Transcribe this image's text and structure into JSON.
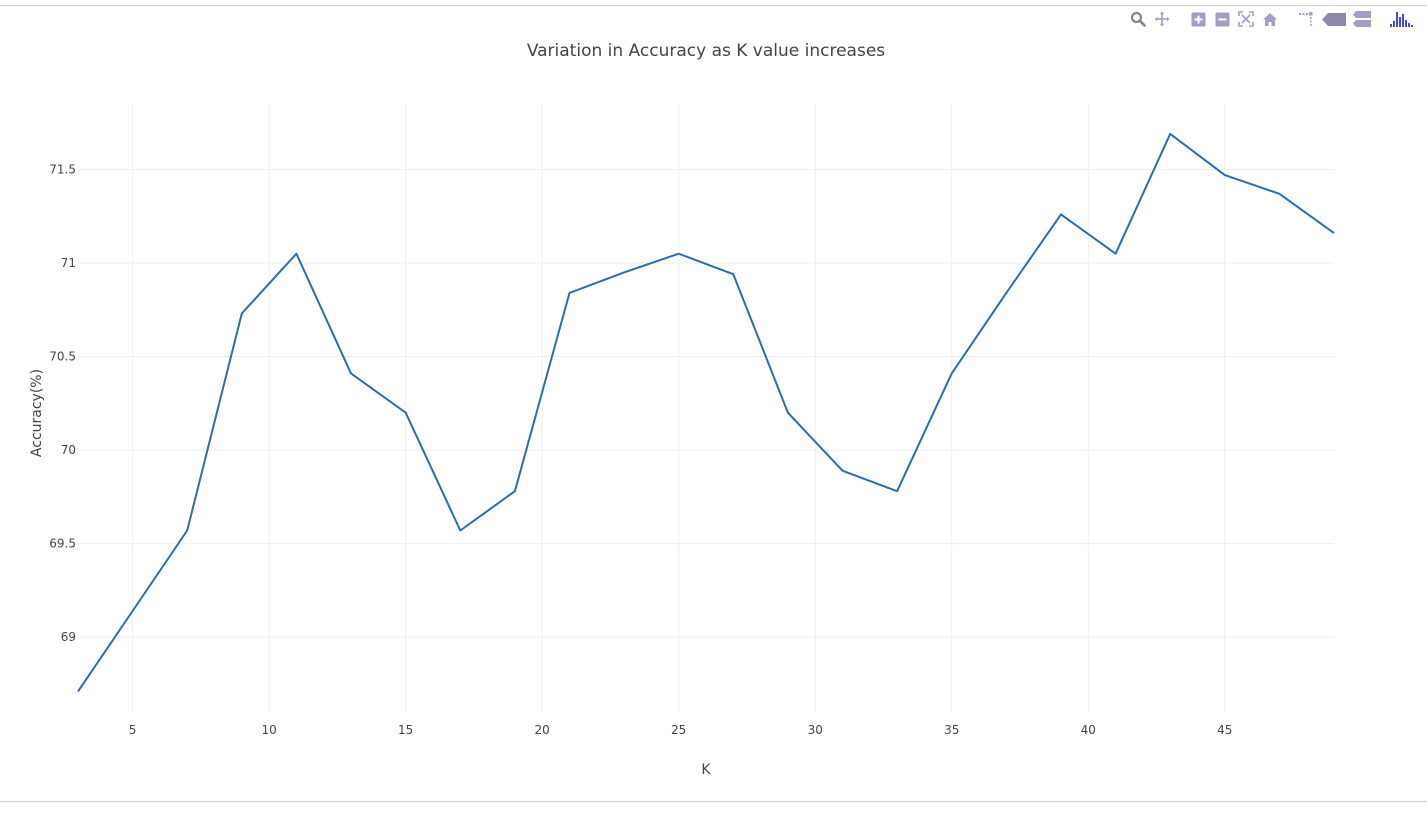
{
  "modebar": {
    "buttons": [
      {
        "icon": "zoom-icon"
      },
      {
        "icon": "pan-icon"
      },
      {
        "icon": "zoom-in-icon"
      },
      {
        "icon": "zoom-out-icon"
      },
      {
        "icon": "autoscale-icon"
      },
      {
        "icon": "reset-axes-icon"
      },
      {
        "icon": "spike-lines-icon"
      },
      {
        "icon": "hover-closest-icon"
      },
      {
        "icon": "hover-compare-icon"
      },
      {
        "icon": "plotly-logo-icon"
      }
    ],
    "color": "#a29fc6",
    "active_color": "#888888",
    "logo_color": "#3f4fd8"
  },
  "chart_data": {
    "type": "line",
    "title": "Variation in Accuracy as K value increases",
    "xlabel": "K",
    "ylabel": "Accuracy(%)",
    "xlim": [
      3,
      49
    ],
    "ylim": [
      68.6,
      71.85
    ],
    "xticks": [
      5,
      10,
      15,
      20,
      25,
      30,
      35,
      40,
      45
    ],
    "yticks": [
      69,
      69.5,
      70,
      70.5,
      71,
      71.5
    ],
    "grid": true,
    "line_color": "#2a6db5",
    "series": [
      {
        "x": [
          3,
          5,
          7,
          9,
          11,
          13,
          15,
          17,
          19,
          21,
          23,
          25,
          27,
          29,
          31,
          33,
          35,
          37,
          39,
          41,
          43,
          45,
          47,
          49
        ],
        "values": [
          68.71,
          69.14,
          69.57,
          70.73,
          71.05,
          70.41,
          70.2,
          69.57,
          69.78,
          70.84,
          70.95,
          71.05,
          70.94,
          70.2,
          69.89,
          69.78,
          70.41,
          70.84,
          71.26,
          71.05,
          71.69,
          71.47,
          71.37,
          71.16
        ]
      }
    ]
  }
}
